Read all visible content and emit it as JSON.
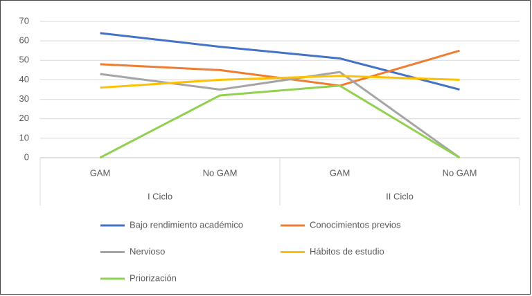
{
  "chart_data": {
    "type": "line",
    "category_groups": [
      {
        "name": "I Ciclo",
        "categories": [
          "GAM",
          "No GAM"
        ]
      },
      {
        "name": "II Ciclo",
        "categories": [
          "GAM",
          "No GAM"
        ]
      }
    ],
    "series": [
      {
        "name": "Bajo rendimiento académico",
        "color": "#4472c4",
        "values": [
          64,
          57,
          51,
          35
        ]
      },
      {
        "name": "Conocimientos previos",
        "color": "#ed7d31",
        "values": [
          48,
          45,
          37,
          55
        ]
      },
      {
        "name": "Nervioso",
        "color": "#a5a5a5",
        "values": [
          43,
          35,
          44,
          0
        ]
      },
      {
        "name": "Hábitos de estudio",
        "color": "#ffc000",
        "values": [
          36,
          40,
          42,
          40
        ]
      },
      {
        "name": "Priorización",
        "color": "#92d050",
        "values": [
          0,
          32,
          37,
          0
        ]
      }
    ],
    "ylim": [
      0,
      70
    ],
    "yticks": [
      0,
      10,
      20,
      30,
      40,
      50,
      60,
      70
    ],
    "grid": true,
    "legend": "bottom"
  }
}
